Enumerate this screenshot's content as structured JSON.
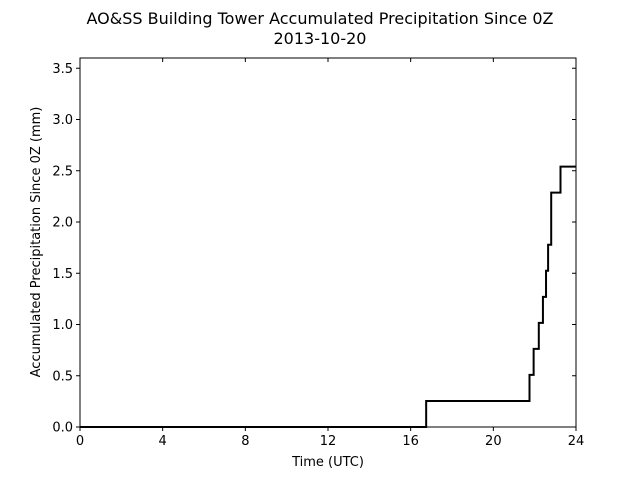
{
  "chart_data": {
    "type": "line",
    "title": "AO&SS Building Tower Accumulated Precipitation Since 0Z",
    "subtitle": "2013-10-20",
    "xlabel": "Time (UTC)",
    "ylabel": "Accumulated Precipitation Since 0Z (mm)",
    "xlim": [
      0,
      24
    ],
    "ylim": [
      0,
      3.6
    ],
    "xticks": [
      0,
      4,
      8,
      12,
      16,
      20,
      24
    ],
    "xtick_labels": [
      "0",
      "4",
      "8",
      "12",
      "16",
      "20",
      "24"
    ],
    "yticks": [
      0.0,
      0.5,
      1.0,
      1.5,
      2.0,
      2.5,
      3.0,
      3.5
    ],
    "ytick_labels": [
      "0.0",
      "0.5",
      "1.0",
      "1.5",
      "2.0",
      "2.5",
      "3.0",
      "3.5"
    ],
    "grid": false,
    "line_color": "#000000",
    "series": [
      {
        "step": "post",
        "x": [
          0,
          16.75,
          21.75,
          21.95,
          22.2,
          22.4,
          22.55,
          22.65,
          22.8,
          23.25,
          24
        ],
        "values": [
          0.0,
          0.254,
          0.508,
          0.762,
          1.016,
          1.27,
          1.524,
          1.778,
          2.286,
          2.54,
          2.54
        ]
      }
    ]
  }
}
